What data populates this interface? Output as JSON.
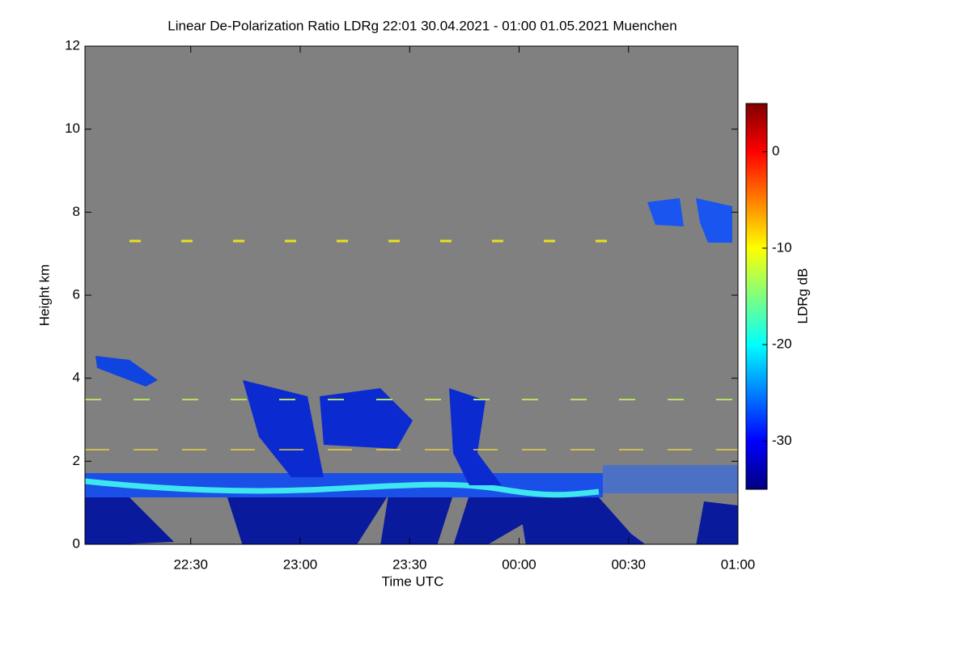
{
  "chart_data": {
    "type": "heatmap",
    "title": "Linear De-Polarization Ratio LDRg   22:01 30.04.2021 - 01:00 01.05.2021 Muenchen",
    "x_label": "Time UTC",
    "y_label": "Height km",
    "xlim": [
      1321,
      1500
    ],
    "xticks": [
      {
        "value": 1350,
        "label": "22:30"
      },
      {
        "value": 1380,
        "label": "23:00"
      },
      {
        "value": 1410,
        "label": "23:30"
      },
      {
        "value": 1440,
        "label": "00:00"
      },
      {
        "value": 1470,
        "label": "00:30"
      },
      {
        "value": 1500,
        "label": "01:00"
      }
    ],
    "ylim": [
      0,
      12
    ],
    "yticks": [
      0,
      2,
      4,
      6,
      8,
      10,
      12
    ],
    "colorbar": {
      "label": "LDRg dB",
      "clim": [
        -35,
        5
      ],
      "ticks": [
        -30,
        -20,
        -10,
        0
      ],
      "colormap": "jet"
    },
    "background": "#808080"
  }
}
